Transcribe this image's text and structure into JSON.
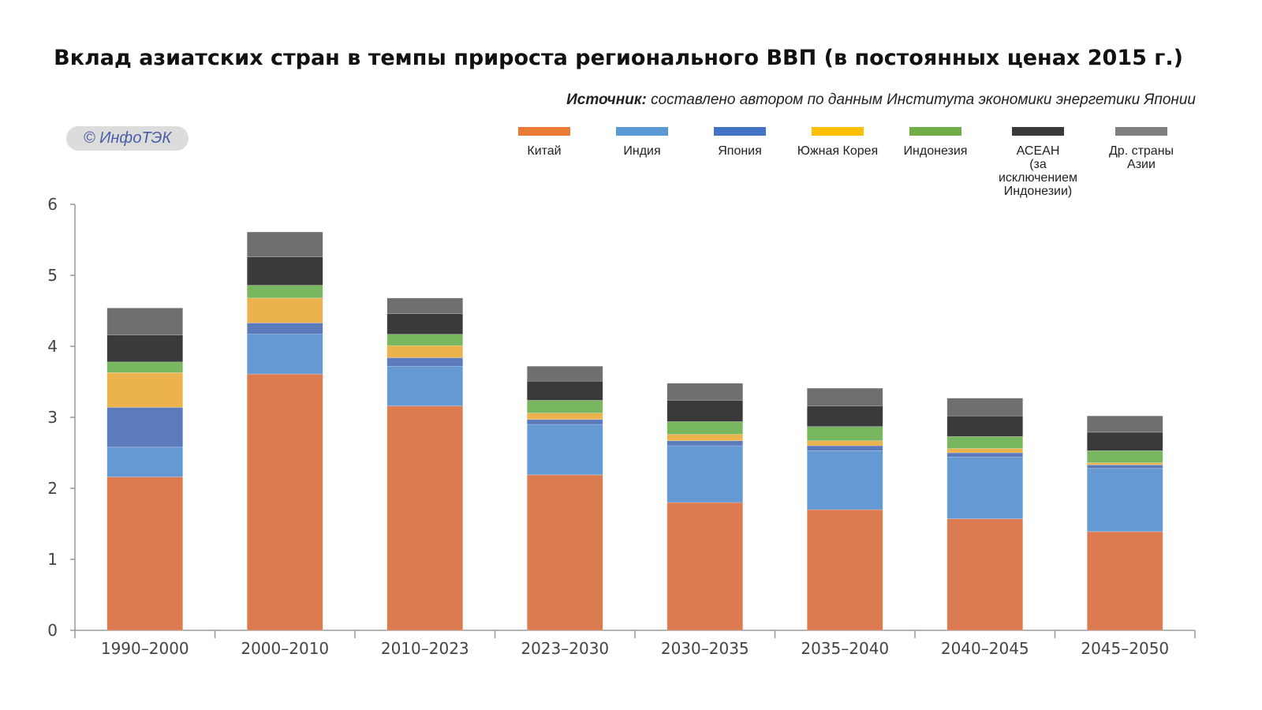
{
  "chart_data": {
    "type": "bar",
    "stacked": true,
    "title": "Вклад азиатских стран в темпы прироста регионального ВВП (в постоянных ценах 2015 г.)",
    "source_label": "Источник:",
    "source_text": "составлено автором по данным Института экономики энергетики Японии",
    "logo_text": "© ИнфоТЭК",
    "xlabel": "",
    "ylabel": "",
    "ylim": [
      0,
      6
    ],
    "yticks": [
      "0",
      "1",
      "2",
      "3",
      "4",
      "5",
      "6"
    ],
    "legend_position": "top-right",
    "categories": [
      "1990–2000",
      "2000–2010",
      "2010–2023",
      "2023–2030",
      "2030–2035",
      "2035–2040",
      "2040–2045",
      "2045–2050"
    ],
    "series": [
      {
        "name": "Китай",
        "color": "#DC7B4F",
        "legend_color": "#E97B36",
        "values": [
          2.16,
          3.61,
          3.16,
          2.19,
          1.8,
          1.7,
          1.57,
          1.39
        ]
      },
      {
        "name": "Индия",
        "color": "#6499D4",
        "legend_color": "#5B9BD5",
        "values": [
          0.42,
          0.56,
          0.56,
          0.71,
          0.8,
          0.83,
          0.87,
          0.89
        ]
      },
      {
        "name": "Япония",
        "color": "#5B7BBD",
        "legend_color": "#4472C4",
        "values": [
          0.56,
          0.16,
          0.12,
          0.07,
          0.07,
          0.07,
          0.06,
          0.05
        ]
      },
      {
        "name": "Южная Корея",
        "color": "#EBB24E",
        "legend_color": "#FFC000",
        "values": [
          0.49,
          0.35,
          0.17,
          0.09,
          0.09,
          0.07,
          0.06,
          0.03
        ]
      },
      {
        "name": "Индонезия",
        "color": "#78B760",
        "legend_color": "#70AD47",
        "values": [
          0.15,
          0.18,
          0.16,
          0.18,
          0.18,
          0.2,
          0.17,
          0.17
        ]
      },
      {
        "name": "АСЕАН (за исключением Индонезии)",
        "label_lines": [
          "АСЕАН",
          "(за исключением",
          "Индонезии)"
        ],
        "color": "#3A3A3A",
        "legend_color": "#3A3A3A",
        "values": [
          0.38,
          0.4,
          0.29,
          0.27,
          0.3,
          0.29,
          0.29,
          0.26
        ]
      },
      {
        "name": "Др. страны Азии",
        "label_lines": [
          "Др. страны",
          "Азии"
        ],
        "color": "#6F6F71",
        "legend_color": "#7F7F7F",
        "values": [
          0.38,
          0.35,
          0.22,
          0.21,
          0.24,
          0.25,
          0.25,
          0.23
        ]
      }
    ]
  }
}
